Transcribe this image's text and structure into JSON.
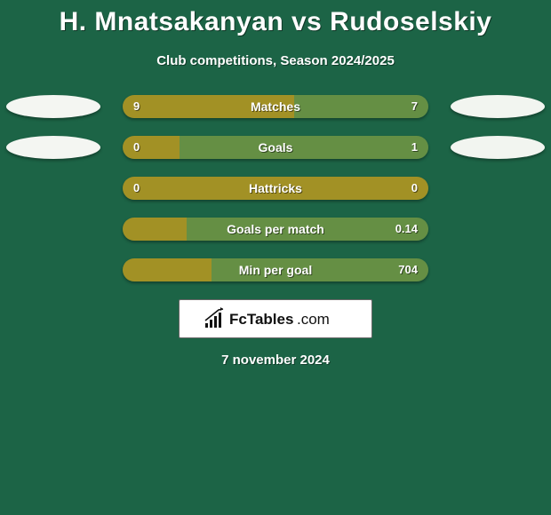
{
  "background_color": "#1c6446",
  "colors": {
    "left": "#a29125",
    "right": "#658f44",
    "pill_left_row0": "#f4f6f2",
    "pill_right_row0": "#f2f5f0",
    "pill_left_row1": "#f4f6f2",
    "pill_right_row1": "#f2f5f0"
  },
  "title": "H. Mnatsakanyan vs Rudoselskiy",
  "subtitle": "Club competitions, Season 2024/2025",
  "rows": [
    {
      "label": "Matches",
      "left": "9",
      "right": "7",
      "left_pct": 56.2,
      "right_pct": 43.8,
      "show_pills": true
    },
    {
      "label": "Goals",
      "left": "0",
      "right": "1",
      "left_pct": 18.5,
      "right_pct": 81.5,
      "show_pills": true
    },
    {
      "label": "Hattricks",
      "left": "0",
      "right": "0",
      "left_pct": 100,
      "right_pct": 0,
      "show_pills": false
    },
    {
      "label": "Goals per match",
      "left": "",
      "right": "0.14",
      "left_pct": 21,
      "right_pct": 79,
      "show_pills": false
    },
    {
      "label": "Min per goal",
      "left": "",
      "right": "704",
      "left_pct": 29,
      "right_pct": 71,
      "show_pills": false
    }
  ],
  "logo_text": "FcTables.com",
  "date": "7 november 2024"
}
